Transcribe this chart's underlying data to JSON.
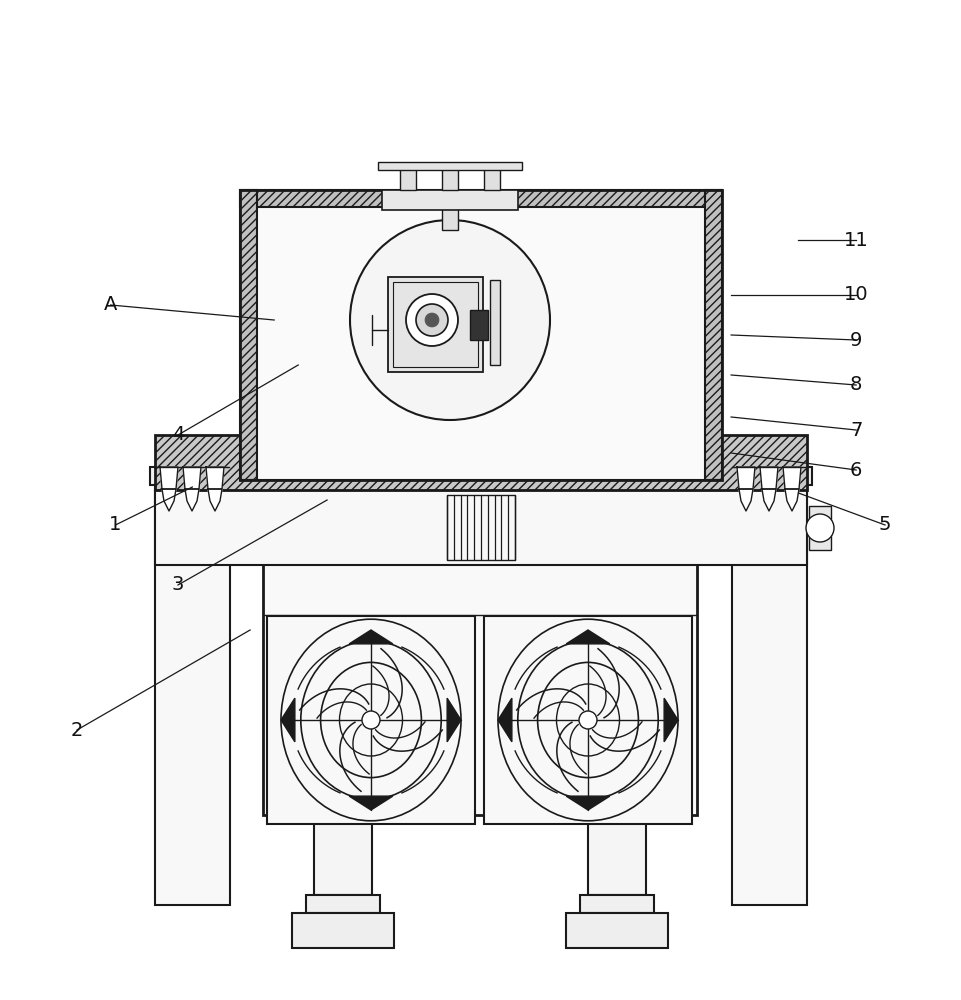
{
  "bg_color": "#ffffff",
  "line_color": "#1a1a1a",
  "label_color": "#111111",
  "lw_main": 1.5,
  "lw_thick": 2.0,
  "lw_thin": 1.0,
  "annotations": {
    "A": {
      "lpos": [
        0.115,
        0.695
      ],
      "ppos": [
        0.285,
        0.68
      ]
    },
    "4": {
      "lpos": [
        0.185,
        0.565
      ],
      "ppos": [
        0.31,
        0.635
      ]
    },
    "1": {
      "lpos": [
        0.12,
        0.475
      ],
      "ppos": [
        0.2,
        0.513
      ]
    },
    "3": {
      "lpos": [
        0.185,
        0.415
      ],
      "ppos": [
        0.34,
        0.5
      ]
    },
    "2": {
      "lpos": [
        0.08,
        0.27
      ],
      "ppos": [
        0.26,
        0.37
      ]
    },
    "5": {
      "lpos": [
        0.92,
        0.475
      ],
      "ppos": [
        0.83,
        0.507
      ]
    },
    "6": {
      "lpos": [
        0.89,
        0.53
      ],
      "ppos": [
        0.76,
        0.547
      ]
    },
    "7": {
      "lpos": [
        0.89,
        0.57
      ],
      "ppos": [
        0.76,
        0.583
      ]
    },
    "8": {
      "lpos": [
        0.89,
        0.615
      ],
      "ppos": [
        0.76,
        0.625
      ]
    },
    "9": {
      "lpos": [
        0.89,
        0.66
      ],
      "ppos": [
        0.76,
        0.665
      ]
    },
    "10": {
      "lpos": [
        0.89,
        0.705
      ],
      "ppos": [
        0.76,
        0.705
      ]
    },
    "11": {
      "lpos": [
        0.89,
        0.76
      ],
      "ppos": [
        0.83,
        0.76
      ]
    }
  }
}
